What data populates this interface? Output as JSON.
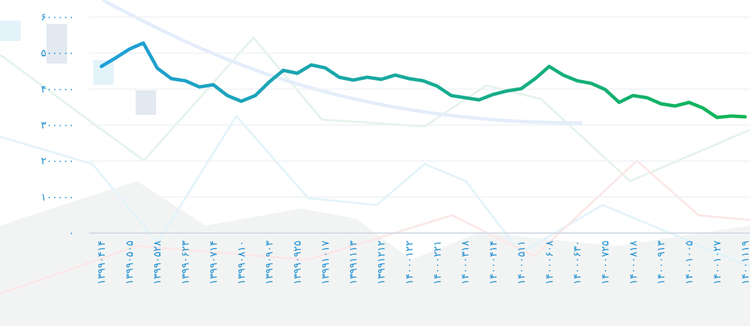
{
  "chart_data": {
    "type": "line",
    "categories": [
      "۱۳۹۹۰۴۱۴",
      null,
      "۱۳۹۹۰۵۰۵",
      null,
      "۱۳۹۹۰۵۲۸",
      null,
      "۱۳۹۹۰۶۲۳",
      null,
      "۱۳۹۹۰۷۱۴",
      null,
      "۱۳۹۹۰۸۱۰",
      null,
      "۱۳۹۹۰۹۰۳",
      null,
      "۱۳۹۹۰۹۲۵",
      null,
      "۱۳۹۹۱۰۱۷",
      null,
      "۱۳۹۹۱۱۱۳",
      null,
      "۱۳۹۹۱۲۱۲",
      null,
      "۱۴۰۰۰۱۲۲",
      null,
      "۱۴۰۰۰۲۲۱",
      null,
      "۱۴۰۰۰۳۱۸",
      null,
      "۱۴۰۰۰۴۱۴",
      null,
      "۱۴۰۰۰۵۱۱",
      null,
      "۱۴۰۰۰۶۰۸",
      null,
      "۱۴۰۰۰۶۳۰",
      null,
      "۱۴۰۰۰۷۲۵",
      null,
      "۱۴۰۰۰۸۱۸",
      null,
      "۱۴۰۰۰۹۱۳",
      null,
      "۱۴۰۰۱۰۰۵",
      null,
      "۱۴۰۰۱۰۲۷",
      null,
      "۱۴۰۰۱۱۱۹"
    ],
    "values": [
      463000,
      486000,
      511000,
      528000,
      458000,
      429000,
      423000,
      406000,
      412000,
      382000,
      366000,
      382000,
      420000,
      452000,
      444000,
      467000,
      459000,
      433000,
      425000,
      433000,
      427000,
      439000,
      429000,
      423000,
      408000,
      382000,
      376000,
      370000,
      385000,
      395000,
      401000,
      429000,
      463000,
      439000,
      423000,
      416000,
      399000,
      363000,
      382000,
      376000,
      359000,
      353000,
      363000,
      347000,
      321000,
      325000,
      323000
    ],
    "gradient": [
      "#1f9fd8",
      "#12b556"
    ],
    "ylim": [
      0,
      600000
    ],
    "yticks": [
      {
        "value": 0,
        "label": "۰"
      },
      {
        "value": 100000,
        "label": "۱۰۰۰۰۰"
      },
      {
        "value": 200000,
        "label": "۲۰۰۰۰۰"
      },
      {
        "value": 300000,
        "label": "۳۰۰۰۰۰"
      },
      {
        "value": 400000,
        "label": "۴۰۰۰۰۰"
      },
      {
        "value": 500000,
        "label": "۵۰۰۰۰۰"
      },
      {
        "value": 600000,
        "label": "۶۰۰۰۰۰"
      }
    ],
    "grid": true
  }
}
